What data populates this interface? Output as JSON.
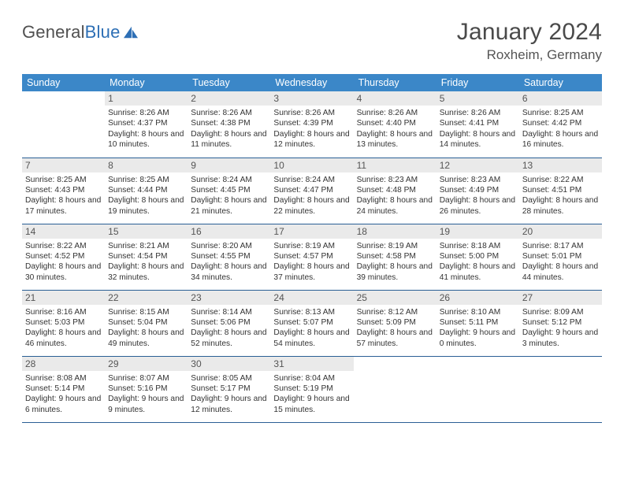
{
  "brand": {
    "word1": "General",
    "word2": "Blue"
  },
  "title": "January 2024",
  "location": "Roxheim, Germany",
  "colors": {
    "header_bg": "#3b87c8",
    "header_text": "#ffffff",
    "daynum_bg": "#eaeaea",
    "row_border": "#2a5f95",
    "brand_blue": "#2d6fb5"
  },
  "dayHeaders": [
    "Sunday",
    "Monday",
    "Tuesday",
    "Wednesday",
    "Thursday",
    "Friday",
    "Saturday"
  ],
  "weeks": [
    [
      {
        "n": "",
        "sr": "",
        "ss": "",
        "dl": ""
      },
      {
        "n": "1",
        "sr": "8:26 AM",
        "ss": "4:37 PM",
        "dl": "8 hours and 10 minutes."
      },
      {
        "n": "2",
        "sr": "8:26 AM",
        "ss": "4:38 PM",
        "dl": "8 hours and 11 minutes."
      },
      {
        "n": "3",
        "sr": "8:26 AM",
        "ss": "4:39 PM",
        "dl": "8 hours and 12 minutes."
      },
      {
        "n": "4",
        "sr": "8:26 AM",
        "ss": "4:40 PM",
        "dl": "8 hours and 13 minutes."
      },
      {
        "n": "5",
        "sr": "8:26 AM",
        "ss": "4:41 PM",
        "dl": "8 hours and 14 minutes."
      },
      {
        "n": "6",
        "sr": "8:25 AM",
        "ss": "4:42 PM",
        "dl": "8 hours and 16 minutes."
      }
    ],
    [
      {
        "n": "7",
        "sr": "8:25 AM",
        "ss": "4:43 PM",
        "dl": "8 hours and 17 minutes."
      },
      {
        "n": "8",
        "sr": "8:25 AM",
        "ss": "4:44 PM",
        "dl": "8 hours and 19 minutes."
      },
      {
        "n": "9",
        "sr": "8:24 AM",
        "ss": "4:45 PM",
        "dl": "8 hours and 21 minutes."
      },
      {
        "n": "10",
        "sr": "8:24 AM",
        "ss": "4:47 PM",
        "dl": "8 hours and 22 minutes."
      },
      {
        "n": "11",
        "sr": "8:23 AM",
        "ss": "4:48 PM",
        "dl": "8 hours and 24 minutes."
      },
      {
        "n": "12",
        "sr": "8:23 AM",
        "ss": "4:49 PM",
        "dl": "8 hours and 26 minutes."
      },
      {
        "n": "13",
        "sr": "8:22 AM",
        "ss": "4:51 PM",
        "dl": "8 hours and 28 minutes."
      }
    ],
    [
      {
        "n": "14",
        "sr": "8:22 AM",
        "ss": "4:52 PM",
        "dl": "8 hours and 30 minutes."
      },
      {
        "n": "15",
        "sr": "8:21 AM",
        "ss": "4:54 PM",
        "dl": "8 hours and 32 minutes."
      },
      {
        "n": "16",
        "sr": "8:20 AM",
        "ss": "4:55 PM",
        "dl": "8 hours and 34 minutes."
      },
      {
        "n": "17",
        "sr": "8:19 AM",
        "ss": "4:57 PM",
        "dl": "8 hours and 37 minutes."
      },
      {
        "n": "18",
        "sr": "8:19 AM",
        "ss": "4:58 PM",
        "dl": "8 hours and 39 minutes."
      },
      {
        "n": "19",
        "sr": "8:18 AM",
        "ss": "5:00 PM",
        "dl": "8 hours and 41 minutes."
      },
      {
        "n": "20",
        "sr": "8:17 AM",
        "ss": "5:01 PM",
        "dl": "8 hours and 44 minutes."
      }
    ],
    [
      {
        "n": "21",
        "sr": "8:16 AM",
        "ss": "5:03 PM",
        "dl": "8 hours and 46 minutes."
      },
      {
        "n": "22",
        "sr": "8:15 AM",
        "ss": "5:04 PM",
        "dl": "8 hours and 49 minutes."
      },
      {
        "n": "23",
        "sr": "8:14 AM",
        "ss": "5:06 PM",
        "dl": "8 hours and 52 minutes."
      },
      {
        "n": "24",
        "sr": "8:13 AM",
        "ss": "5:07 PM",
        "dl": "8 hours and 54 minutes."
      },
      {
        "n": "25",
        "sr": "8:12 AM",
        "ss": "5:09 PM",
        "dl": "8 hours and 57 minutes."
      },
      {
        "n": "26",
        "sr": "8:10 AM",
        "ss": "5:11 PM",
        "dl": "9 hours and 0 minutes."
      },
      {
        "n": "27",
        "sr": "8:09 AM",
        "ss": "5:12 PM",
        "dl": "9 hours and 3 minutes."
      }
    ],
    [
      {
        "n": "28",
        "sr": "8:08 AM",
        "ss": "5:14 PM",
        "dl": "9 hours and 6 minutes."
      },
      {
        "n": "29",
        "sr": "8:07 AM",
        "ss": "5:16 PM",
        "dl": "9 hours and 9 minutes."
      },
      {
        "n": "30",
        "sr": "8:05 AM",
        "ss": "5:17 PM",
        "dl": "9 hours and 12 minutes."
      },
      {
        "n": "31",
        "sr": "8:04 AM",
        "ss": "5:19 PM",
        "dl": "9 hours and 15 minutes."
      },
      {
        "n": "",
        "sr": "",
        "ss": "",
        "dl": ""
      },
      {
        "n": "",
        "sr": "",
        "ss": "",
        "dl": ""
      },
      {
        "n": "",
        "sr": "",
        "ss": "",
        "dl": ""
      }
    ]
  ],
  "labels": {
    "sunrise": "Sunrise:",
    "sunset": "Sunset:",
    "daylight": "Daylight:"
  }
}
